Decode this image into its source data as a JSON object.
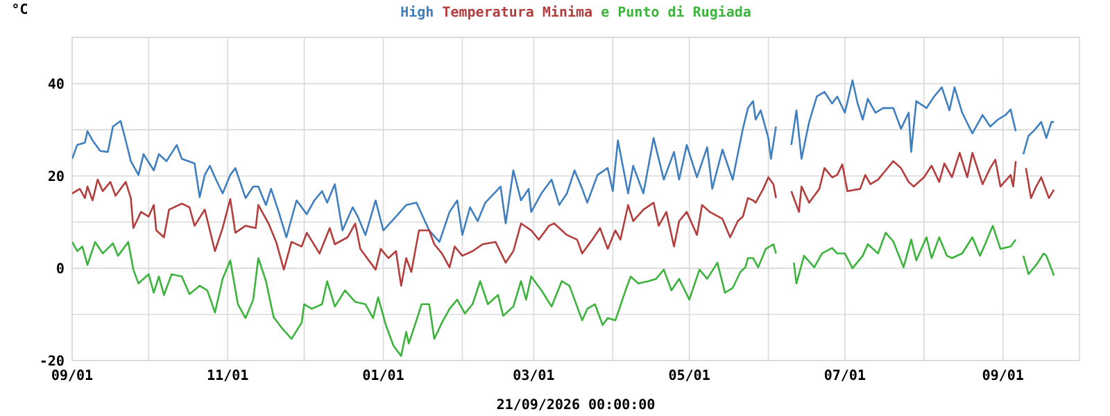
{
  "chart_data": {
    "type": "line",
    "xlabel": "21/09/2026 00:00:00",
    "ylabel": "°C",
    "legend": "top",
    "grid": true,
    "xlim": [
      "2025-09-01",
      "2026-10-01"
    ],
    "ylim": [
      -20,
      50
    ],
    "xticks": [
      {
        "value": "2025-09-01",
        "label": "09/01"
      },
      {
        "value": "2025-10-01",
        "label": null
      },
      {
        "value": "2025-11-01",
        "label": "11/01"
      },
      {
        "value": "2025-12-01",
        "label": null
      },
      {
        "value": "2026-01-01",
        "label": "01/01"
      },
      {
        "value": "2026-02-01",
        "label": null
      },
      {
        "value": "2026-03-01",
        "label": "03/01"
      },
      {
        "value": "2026-04-01",
        "label": null
      },
      {
        "value": "2026-05-01",
        "label": "05/01"
      },
      {
        "value": "2026-06-01",
        "label": null
      },
      {
        "value": "2026-07-01",
        "label": "07/01"
      },
      {
        "value": "2026-08-01",
        "label": null
      },
      {
        "value": "2026-09-01",
        "label": "09/01"
      }
    ],
    "yticks": [
      -20,
      {
        "value": -10,
        "label": null
      },
      0,
      {
        "value": 10,
        "label": null
      },
      20,
      {
        "value": 30,
        "label": null
      },
      40,
      {
        "value": 50,
        "label": null
      }
    ],
    "series": [
      {
        "name": "High",
        "color": "#3f7fbf",
        "x": [
          "2025-09-01",
          "2025-09-03",
          "2025-09-06",
          "2025-09-07",
          "2025-09-09",
          "2025-09-12",
          "2025-09-15",
          "2025-09-17",
          "2025-09-20",
          "2025-09-22",
          "2025-09-24",
          "2025-09-27",
          "2025-09-29",
          "2025-10-03",
          "2025-10-05",
          "2025-10-08",
          "2025-10-12",
          "2025-10-14",
          "2025-10-19",
          "2025-10-21",
          "2025-10-23",
          "2025-10-25",
          "2025-10-27",
          "2025-10-30",
          "2025-11-02",
          "2025-11-04",
          "2025-11-08",
          "2025-11-11",
          "2025-11-13",
          "2025-11-16",
          "2025-11-18",
          "2025-11-21",
          "2025-11-24",
          "2025-11-28",
          "2025-12-02",
          "2025-12-05",
          "2025-12-08",
          "2025-12-10",
          "2025-12-13",
          "2025-12-16",
          "2025-12-20",
          "2025-12-22",
          "2025-12-25",
          "2025-12-29",
          "2026-01-01",
          "2026-01-06",
          "2026-01-10",
          "2026-01-14",
          "2026-01-19",
          "2026-01-23",
          "2026-01-27",
          "2026-01-30",
          "2026-02-01",
          "2026-02-04",
          "2026-02-07",
          "2026-02-10",
          "2026-02-16",
          "2026-02-18",
          "2026-02-21",
          "2026-02-24",
          "2026-02-27",
          "2026-02-28",
          "2026-03-04",
          "2026-03-08",
          "2026-03-11",
          "2026-03-14",
          "2026-03-17",
          "2026-03-20",
          "2026-03-22",
          "2026-03-26",
          "2026-03-30",
          "2026-04-01",
          "2026-04-03",
          "2026-04-07",
          "2026-04-09",
          "2026-04-13",
          "2026-04-17",
          "2026-04-21",
          "2026-04-25",
          "2026-04-27",
          "2026-04-30",
          "2026-05-04",
          "2026-05-08",
          "2026-05-10",
          "2026-05-14",
          "2026-05-18",
          "2026-05-22",
          "2026-05-24",
          "2026-05-26",
          "2026-05-27",
          "2026-05-29",
          "2026-06-01",
          "2026-06-02",
          "2026-06-04",
          "2026-06-07",
          "2026-06-10",
          "2026-06-12",
          "2026-06-14",
          "2026-06-17",
          "2026-06-20",
          "2026-06-23",
          "2026-06-26",
          "2026-06-28",
          "2026-07-01",
          "2026-07-04",
          "2026-07-06",
          "2026-07-08",
          "2026-07-10",
          "2026-07-13",
          "2026-07-16",
          "2026-07-20",
          "2026-07-23",
          "2026-07-26",
          "2026-07-27",
          "2026-07-29",
          "2026-08-02",
          "2026-08-05",
          "2026-08-08",
          "2026-08-11",
          "2026-08-13",
          "2026-08-16",
          "2026-08-20",
          "2026-08-24",
          "2026-08-27",
          "2026-08-30",
          "2026-09-02",
          "2026-09-04",
          "2026-09-06",
          "2026-09-07",
          "2026-09-09",
          "2026-09-11",
          "2026-09-13",
          "2026-09-16",
          "2026-09-18",
          "2026-09-20",
          "2026-09-21"
        ],
        "values": [
          23.7,
          26.7,
          27.2,
          29.7,
          27.7,
          25.4,
          25.2,
          30.7,
          31.9,
          27.7,
          23.2,
          20.2,
          24.7,
          21.2,
          24.7,
          23.2,
          26.7,
          23.7,
          22.7,
          15.4,
          20.2,
          22.2,
          19.7,
          16.2,
          20.2,
          21.7,
          15.2,
          17.7,
          17.7,
          13.7,
          17.2,
          12.2,
          6.7,
          14.7,
          11.7,
          14.7,
          16.7,
          14.2,
          18.2,
          8.2,
          13.2,
          11.2,
          7.2,
          14.7,
          8.2,
          11.2,
          13.7,
          14.2,
          8.2,
          5.7,
          12.2,
          14.7,
          7.2,
          13.2,
          10.2,
          14.2,
          17.7,
          9.7,
          21.2,
          14.7,
          17.2,
          12.2,
          16.2,
          19.2,
          13.7,
          16.2,
          21.2,
          17.2,
          14.2,
          20.2,
          21.7,
          16.7,
          27.7,
          16.2,
          22.2,
          16.2,
          28.2,
          19.2,
          25.2,
          19.2,
          26.7,
          19.7,
          26.2,
          17.2,
          25.7,
          19.2,
          30.2,
          34.7,
          36.2,
          32.2,
          34.2,
          28.2,
          23.7,
          30.7,
          null,
          26.7,
          34.2,
          23.7,
          31.7,
          37.2,
          38.2,
          35.7,
          37.2,
          33.7,
          40.7,
          35.7,
          32.2,
          36.7,
          33.7,
          34.7,
          34.7,
          30.2,
          33.7,
          25.2,
          36.2,
          34.7,
          37.2,
          39.2,
          34.2,
          39.2,
          33.7,
          29.2,
          33.2,
          30.7,
          32.2,
          33.2,
          34.4,
          29.7,
          null,
          24.7,
          28.7,
          29.7,
          31.7,
          28.2,
          31.7,
          31.7
        ]
      },
      {
        "name": "Temperatura Minima",
        "color": "#b33c3c",
        "x": [
          "2025-09-01",
          "2025-09-04",
          "2025-09-06",
          "2025-09-07",
          "2025-09-09",
          "2025-09-11",
          "2025-09-13",
          "2025-09-16",
          "2025-09-18",
          "2025-09-22",
          "2025-09-24",
          "2025-09-25",
          "2025-09-28",
          "2025-10-01",
          "2025-10-03",
          "2025-10-04",
          "2025-10-07",
          "2025-10-09",
          "2025-10-14",
          "2025-10-17",
          "2025-10-19",
          "2025-10-23",
          "2025-10-27",
          "2025-10-30",
          "2025-11-02",
          "2025-11-04",
          "2025-11-08",
          "2025-11-12",
          "2025-11-13",
          "2025-11-17",
          "2025-11-20",
          "2025-11-23",
          "2025-11-26",
          "2025-11-30",
          "2025-12-02",
          "2025-12-07",
          "2025-12-11",
          "2025-12-13",
          "2025-12-18",
          "2025-12-21",
          "2025-12-23",
          "2025-12-29",
          "2025-12-31",
          "2026-01-03",
          "2026-01-06",
          "2026-01-08",
          "2026-01-10",
          "2026-01-12",
          "2026-01-15",
          "2026-01-19",
          "2026-01-21",
          "2026-01-24",
          "2026-01-27",
          "2026-01-29",
          "2026-02-01",
          "2026-02-05",
          "2026-02-09",
          "2026-02-14",
          "2026-02-18",
          "2026-02-21",
          "2026-02-24",
          "2026-02-28",
          "2026-03-03",
          "2026-03-07",
          "2026-03-09",
          "2026-03-14",
          "2026-03-18",
          "2026-03-20",
          "2026-03-24",
          "2026-03-27",
          "2026-03-30",
          "2026-04-02",
          "2026-04-04",
          "2026-04-07",
          "2026-04-09",
          "2026-04-13",
          "2026-04-17",
          "2026-04-19",
          "2026-04-22",
          "2026-04-25",
          "2026-04-27",
          "2026-04-30",
          "2026-05-04",
          "2026-05-06",
          "2026-05-09",
          "2026-05-14",
          "2026-05-17",
          "2026-05-20",
          "2026-05-22",
          "2026-05-24",
          "2026-05-26",
          "2026-05-27",
          "2026-05-30",
          "2026-06-01",
          "2026-06-03",
          "2026-06-04",
          "2026-06-07",
          "2026-06-10",
          "2026-06-13",
          "2026-06-14",
          "2026-06-17",
          "2026-06-21",
          "2026-06-23",
          "2026-06-26",
          "2026-06-28",
          "2026-06-30",
          "2026-07-02",
          "2026-07-07",
          "2026-07-09",
          "2026-07-11",
          "2026-07-14",
          "2026-07-17",
          "2026-07-20",
          "2026-07-23",
          "2026-07-26",
          "2026-07-28",
          "2026-08-01",
          "2026-08-04",
          "2026-08-07",
          "2026-08-09",
          "2026-08-12",
          "2026-08-15",
          "2026-08-18",
          "2026-08-20",
          "2026-08-24",
          "2026-08-27",
          "2026-08-29",
          "2026-08-31",
          "2026-09-04",
          "2026-09-05",
          "2026-09-06",
          "2026-09-08",
          "2026-09-10",
          "2026-09-12",
          "2026-09-14",
          "2026-09-16",
          "2026-09-19",
          "2026-09-21"
        ],
        "values": [
          16.2,
          17.2,
          15.2,
          17.7,
          14.7,
          19.2,
          16.7,
          18.7,
          15.7,
          18.7,
          15.2,
          8.7,
          12.2,
          11.2,
          13.7,
          8.2,
          6.7,
          12.7,
          14.0,
          13.2,
          9.2,
          12.7,
          3.7,
          8.7,
          15.0,
          7.7,
          9.2,
          8.7,
          13.7,
          9.7,
          5.7,
          -0.3,
          5.7,
          4.7,
          7.7,
          3.2,
          8.7,
          5.2,
          6.7,
          9.7,
          4.2,
          -0.3,
          4.2,
          2.2,
          3.7,
          -3.8,
          2.2,
          -0.8,
          8.2,
          8.2,
          5.2,
          3.2,
          0.2,
          4.7,
          2.7,
          3.7,
          5.2,
          5.7,
          1.2,
          3.7,
          9.7,
          8.2,
          6.2,
          9.2,
          9.7,
          7.2,
          6.2,
          3.2,
          6.2,
          8.7,
          4.2,
          8.2,
          6.2,
          13.7,
          10.2,
          12.7,
          14.2,
          9.2,
          12.2,
          4.7,
          10.2,
          12.2,
          7.2,
          13.7,
          12.2,
          10.7,
          6.7,
          10.2,
          11.2,
          15.2,
          14.7,
          14.2,
          17.2,
          19.7,
          18.2,
          15.2,
          null,
          16.7,
          12.2,
          17.7,
          14.2,
          17.2,
          21.7,
          19.7,
          20.2,
          22.5,
          16.7,
          17.2,
          20.2,
          18.2,
          19.2,
          21.2,
          23.2,
          21.7,
          18.7,
          17.7,
          19.7,
          22.2,
          18.7,
          22.7,
          19.7,
          25.0,
          19.7,
          25.0,
          18.2,
          21.7,
          23.5,
          17.7,
          20.2,
          17.7,
          23.2,
          null,
          21.7,
          15.2,
          17.7,
          19.7,
          15.2,
          17.0
        ]
      },
      {
        "name": "e Punto di Rugiada",
        "color": "#3cb33c",
        "x": [
          "2025-09-01",
          "2025-09-03",
          "2025-09-05",
          "2025-09-07",
          "2025-09-10",
          "2025-09-13",
          "2025-09-17",
          "2025-09-19",
          "2025-09-23",
          "2025-09-25",
          "2025-09-27",
          "2025-10-01",
          "2025-10-03",
          "2025-10-05",
          "2025-10-07",
          "2025-10-10",
          "2025-10-14",
          "2025-10-17",
          "2025-10-21",
          "2025-10-24",
          "2025-10-27",
          "2025-10-30",
          "2025-11-02",
          "2025-11-05",
          "2025-11-08",
          "2025-11-11",
          "2025-11-13",
          "2025-11-16",
          "2025-11-19",
          "2025-11-22",
          "2025-11-26",
          "2025-11-30",
          "2025-12-01",
          "2025-12-04",
          "2025-12-08",
          "2025-12-10",
          "2025-12-13",
          "2025-12-17",
          "2025-12-21",
          "2025-12-25",
          "2025-12-28",
          "2025-12-30",
          "2026-01-02",
          "2026-01-05",
          "2026-01-08",
          "2026-01-10",
          "2026-01-11",
          "2026-01-14",
          "2026-01-16",
          "2026-01-19",
          "2026-01-21",
          "2026-01-24",
          "2026-01-27",
          "2026-01-30",
          "2026-02-02",
          "2026-02-05",
          "2026-02-08",
          "2026-02-11",
          "2026-02-15",
          "2026-02-17",
          "2026-02-21",
          "2026-02-24",
          "2026-02-26",
          "2026-02-28",
          "2026-03-04",
          "2026-03-08",
          "2026-03-12",
          "2026-03-15",
          "2026-03-20",
          "2026-03-22",
          "2026-03-25",
          "2026-03-28",
          "2026-03-30",
          "2026-04-02",
          "2026-04-06",
          "2026-04-08",
          "2026-04-11",
          "2026-04-15",
          "2026-04-18",
          "2026-04-21",
          "2026-04-24",
          "2026-04-27",
          "2026-05-01",
          "2026-05-05",
          "2026-05-08",
          "2026-05-12",
          "2026-05-15",
          "2026-05-18",
          "2026-05-21",
          "2026-05-23",
          "2026-05-24",
          "2026-05-26",
          "2026-05-28",
          "2026-05-31",
          "2026-06-03",
          "2026-06-04",
          "2026-06-07",
          "2026-06-11",
          "2026-06-12",
          "2026-06-15",
          "2026-06-19",
          "2026-06-22",
          "2026-06-26",
          "2026-06-28",
          "2026-07-01",
          "2026-07-04",
          "2026-07-08",
          "2026-07-10",
          "2026-07-14",
          "2026-07-17",
          "2026-07-20",
          "2026-07-24",
          "2026-07-27",
          "2026-07-29",
          "2026-08-02",
          "2026-08-04",
          "2026-08-07",
          "2026-08-10",
          "2026-08-12",
          "2026-08-16",
          "2026-08-20",
          "2026-08-23",
          "2026-08-25",
          "2026-08-28",
          "2026-08-31",
          "2026-09-04",
          "2026-09-06",
          "2026-09-08",
          "2026-09-09",
          "2026-09-11",
          "2026-09-14",
          "2026-09-17",
          "2026-09-18",
          "2026-09-21"
        ],
        "values": [
          5.7,
          3.7,
          4.7,
          0.7,
          5.7,
          3.2,
          5.4,
          2.7,
          5.7,
          -0.3,
          -3.3,
          -1.3,
          -5.3,
          -1.8,
          -5.8,
          -1.3,
          -1.8,
          -5.6,
          -3.8,
          -4.8,
          -9.6,
          -2.3,
          1.7,
          -7.8,
          -10.8,
          -6.8,
          2.2,
          -2.8,
          -10.6,
          -12.8,
          -15.3,
          -11.8,
          -7.8,
          -8.8,
          -7.8,
          -2.8,
          -8.3,
          -4.8,
          -7.3,
          -7.8,
          -10.8,
          -6.3,
          -12.3,
          -16.8,
          -19.0,
          -13.8,
          -16.3,
          -11.3,
          -7.8,
          -7.8,
          -15.3,
          -11.8,
          -8.8,
          -6.8,
          -9.8,
          -7.8,
          -2.8,
          -7.8,
          -5.8,
          -10.3,
          -8.3,
          -2.8,
          -6.8,
          -1.8,
          -4.8,
          -8.3,
          -2.8,
          -3.8,
          -11.3,
          -8.8,
          -7.8,
          -12.3,
          -10.8,
          -11.3,
          -4.8,
          -1.8,
          -3.3,
          -2.8,
          -2.3,
          -0.3,
          -4.8,
          -2.3,
          -6.8,
          -0.3,
          -2.3,
          1.2,
          -5.3,
          -4.3,
          -0.8,
          0.2,
          2.2,
          2.2,
          0.2,
          4.2,
          5.2,
          3.2,
          null,
          1.2,
          -3.3,
          2.7,
          0.2,
          3.2,
          4.4,
          3.2,
          3.2,
          0.0,
          2.7,
          5.2,
          3.2,
          7.7,
          5.8,
          0.2,
          6.2,
          1.7,
          6.7,
          2.2,
          6.7,
          2.7,
          2.2,
          3.2,
          6.7,
          2.7,
          5.2,
          9.2,
          4.2,
          4.7,
          6.2,
          null,
          2.7,
          -1.3,
          0.7,
          3.2,
          2.7,
          -1.6
        ]
      }
    ]
  }
}
